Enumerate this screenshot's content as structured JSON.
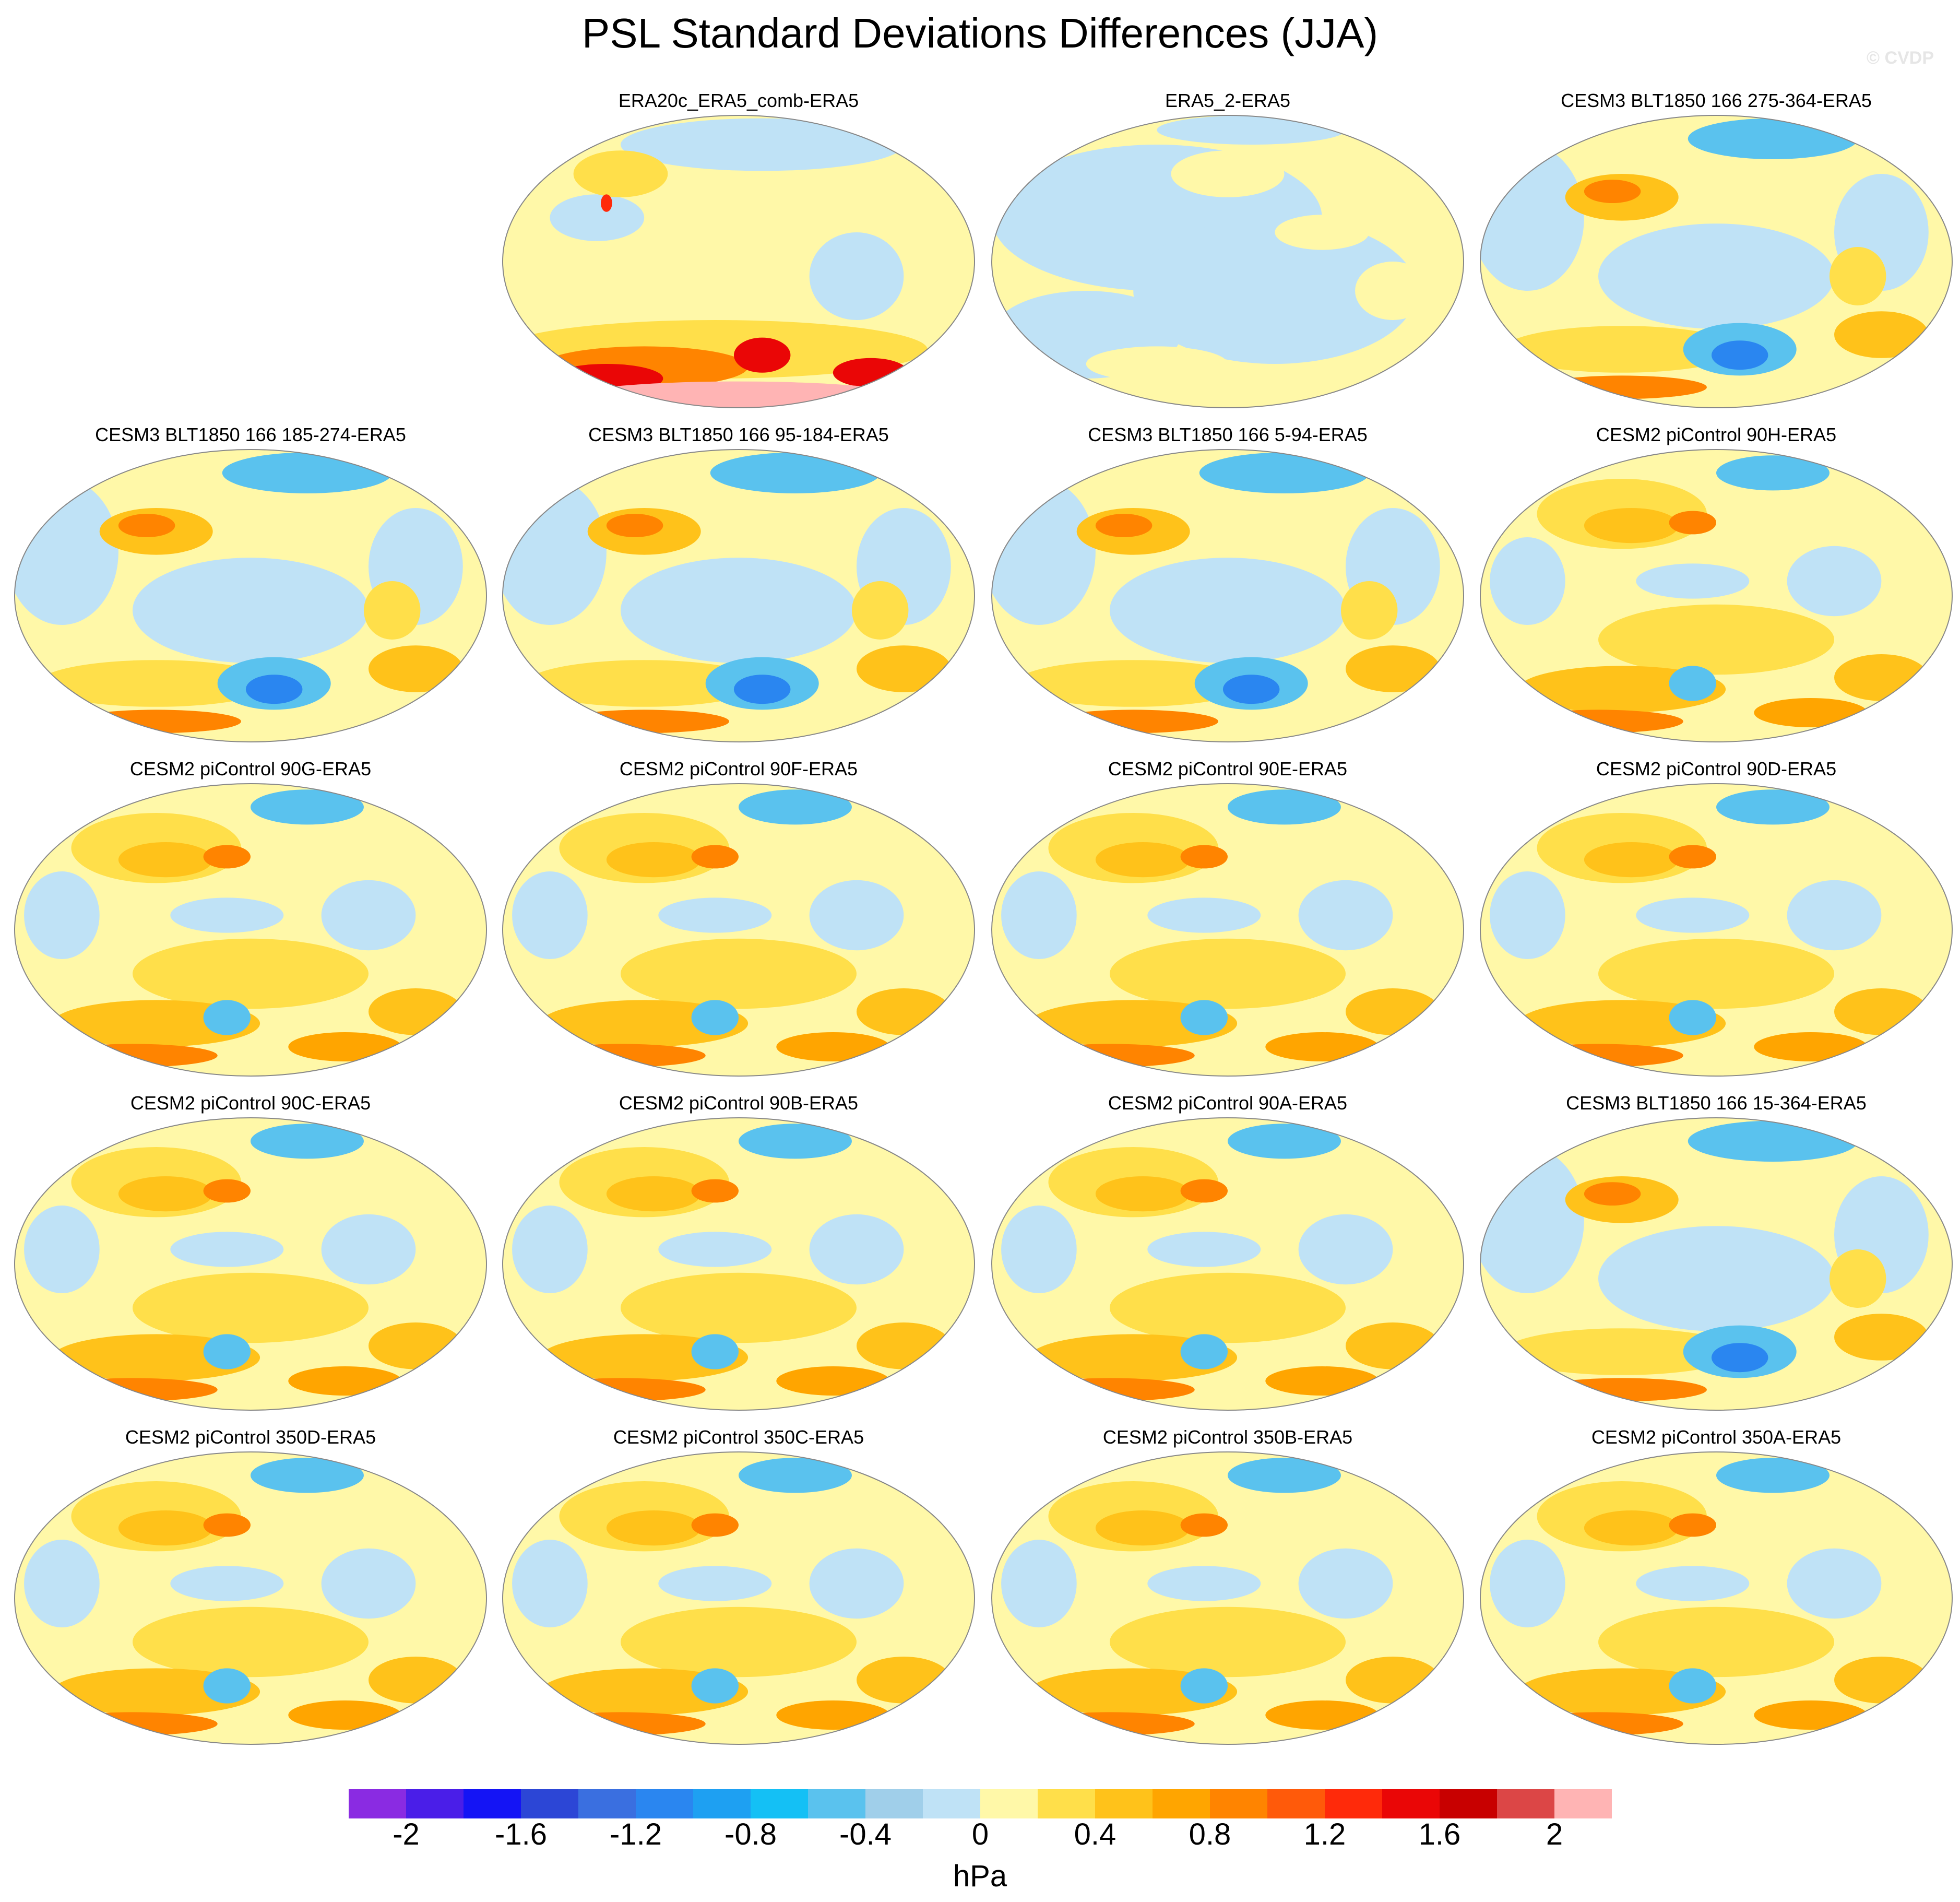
{
  "title": "PSL Standard Deviations Differences (JJA)",
  "credit": "© CVDP",
  "panels": [
    {
      "title": "ERA20c_ERA5_comb-ERA5",
      "row": 0,
      "col": 1,
      "style": "era20c"
    },
    {
      "title": "ERA5_2-ERA5",
      "row": 0,
      "col": 2,
      "style": "era5"
    },
    {
      "title": "CESM3 BLT1850 166 275-364-ERA5",
      "row": 0,
      "col": 3,
      "style": "cesm3"
    },
    {
      "title": "CESM3 BLT1850 166 185-274-ERA5",
      "row": 1,
      "col": 0,
      "style": "cesm3"
    },
    {
      "title": "CESM3 BLT1850 166 95-184-ERA5",
      "row": 1,
      "col": 1,
      "style": "cesm3"
    },
    {
      "title": "CESM3 BLT1850 166 5-94-ERA5",
      "row": 1,
      "col": 2,
      "style": "cesm3"
    },
    {
      "title": "CESM2 piControl 90H-ERA5",
      "row": 1,
      "col": 3,
      "style": "cesm2"
    },
    {
      "title": "CESM2 piControl 90G-ERA5",
      "row": 2,
      "col": 0,
      "style": "cesm2"
    },
    {
      "title": "CESM2 piControl 90F-ERA5",
      "row": 2,
      "col": 1,
      "style": "cesm2"
    },
    {
      "title": "CESM2 piControl 90E-ERA5",
      "row": 2,
      "col": 2,
      "style": "cesm2"
    },
    {
      "title": "CESM2 piControl 90D-ERA5",
      "row": 2,
      "col": 3,
      "style": "cesm2"
    },
    {
      "title": "CESM2 piControl 90C-ERA5",
      "row": 3,
      "col": 0,
      "style": "cesm2"
    },
    {
      "title": "CESM2 piControl 90B-ERA5",
      "row": 3,
      "col": 1,
      "style": "cesm2"
    },
    {
      "title": "CESM2 piControl 90A-ERA5",
      "row": 3,
      "col": 2,
      "style": "cesm2"
    },
    {
      "title": "CESM3 BLT1850 166 15-364-ERA5",
      "row": 3,
      "col": 3,
      "style": "cesm3"
    },
    {
      "title": "CESM2 piControl 350D-ERA5",
      "row": 4,
      "col": 0,
      "style": "cesm2"
    },
    {
      "title": "CESM2 piControl 350C-ERA5",
      "row": 4,
      "col": 1,
      "style": "cesm2"
    },
    {
      "title": "CESM2 piControl 350B-ERA5",
      "row": 4,
      "col": 2,
      "style": "cesm2"
    },
    {
      "title": "CESM2 piControl 350A-ERA5",
      "row": 4,
      "col": 3,
      "style": "cesm2"
    }
  ],
  "colorbar": {
    "colors": [
      "#8a2be2",
      "#4a1ee8",
      "#1414f5",
      "#2c46d6",
      "#3a6fe0",
      "#2a86f0",
      "#1ea0f2",
      "#14c0f5",
      "#5ac2ee",
      "#a0cfea",
      "#bfe2f6",
      "#fff8a8",
      "#ffdf4a",
      "#ffc21a",
      "#ffa500",
      "#ff8400",
      "#ff5a0a",
      "#ff2a0a",
      "#ea0606",
      "#c80000",
      "#dc4646",
      "#ffb4b4"
    ],
    "tick_labels": [
      "-2",
      "-1.6",
      "-1.2",
      "-0.8",
      "-0.4",
      "0",
      "0.4",
      "0.8",
      "1.2",
      "1.6",
      "2"
    ],
    "units": "hPa"
  }
}
